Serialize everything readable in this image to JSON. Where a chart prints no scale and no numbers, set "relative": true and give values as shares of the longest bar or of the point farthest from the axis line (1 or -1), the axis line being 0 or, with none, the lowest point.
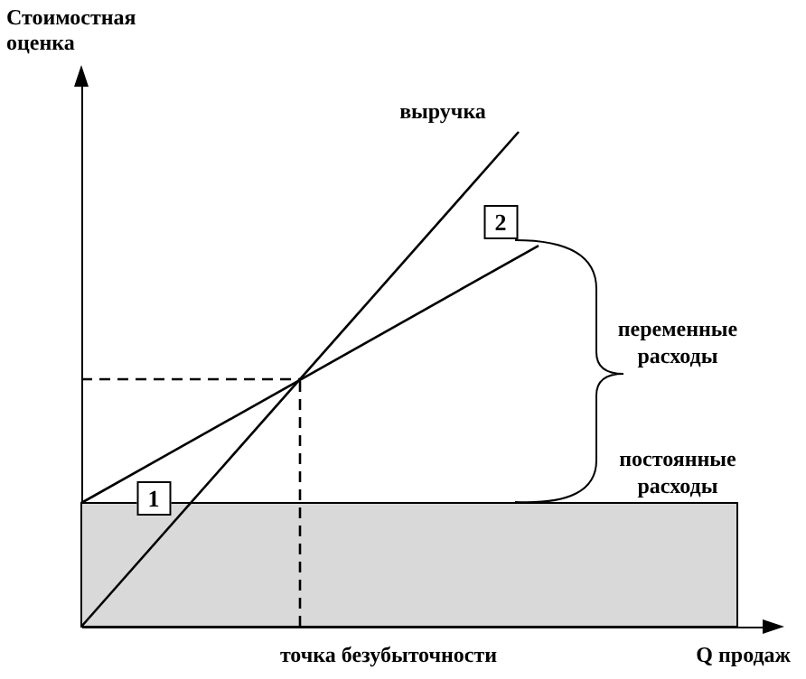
{
  "chart_data": {
    "type": "line",
    "relative": true,
    "xlabel": "Q продаж",
    "ylabel": "Стоимостная оценка",
    "categories": [
      null,
      null,
      null,
      null,
      null,
      null,
      null,
      null,
      null,
      null,
      null,
      null,
      null,
      null,
      null,
      null,
      null,
      null,
      null,
      null,
      null,
      null,
      null,
      null,
      null,
      null,
      null,
      null,
      null,
      null,
      null,
      null,
      null,
      null
    ],
    "series": [
      {
        "color": "#000000",
        "values": [
          0,
          null,
          null,
          null,
          null,
          null,
          null,
          null,
          null,
          null,
          null,
          null,
          null,
          null,
          null,
          null,
          null,
          null,
          null,
          null,
          null,
          null,
          1,
          null,
          null,
          null,
          null,
          null,
          null,
          null,
          null,
          null,
          null,
          null
        ]
      },
      {
        "color": "#000000",
        "values": [
          0.25,
          null,
          null,
          null,
          null,
          null,
          null,
          null,
          null,
          null,
          null,
          null,
          null,
          null,
          null,
          null,
          null,
          null,
          null,
          null,
          null,
          null,
          null,
          0.77,
          null,
          null,
          null,
          null,
          null,
          null,
          null,
          null,
          null,
          null
        ]
      },
      {
        "type": "area",
        "color": "#d9d9d9",
        "values": [
          0.25,
          null,
          null,
          null,
          null,
          null,
          null,
          null,
          null,
          null,
          null,
          null,
          null,
          null,
          null,
          null,
          null,
          null,
          null,
          null,
          null,
          null,
          null,
          null,
          null,
          null,
          null,
          null,
          null,
          null,
          null,
          null,
          null,
          0.25
        ]
      },
      {
        "color": "#000000",
        "line_style": "dashed",
        "values": [
          0.5,
          null,
          null,
          null,
          null,
          null,
          null,
          null,
          null,
          null,
          null,
          0.5,
          null,
          null,
          null,
          null,
          null,
          null,
          null,
          null,
          null,
          null,
          null,
          null,
          null,
          null,
          null,
          null,
          null,
          null,
          null,
          null,
          null,
          null
        ]
      }
    ],
    "annotations": [
      "выручка",
      "переменные расходы",
      "постоянные расходы",
      "точка безубыточности",
      "1",
      "2"
    ]
  }
}
